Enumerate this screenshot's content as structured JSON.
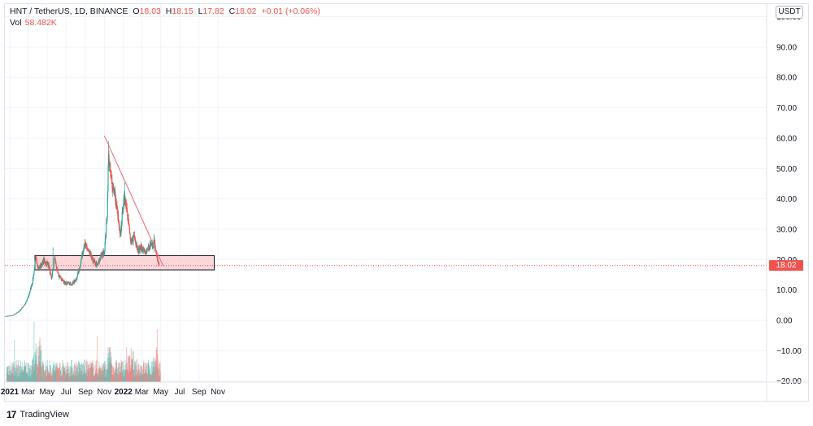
{
  "legend": {
    "symbol": "HNT / TetherUS, 1D, BINANCE",
    "o_label": "O",
    "o_value": "18.03",
    "h_label": "H",
    "h_value": "18.15",
    "l_label": "L",
    "l_value": "17.82",
    "c_label": "C",
    "c_value": "18.02",
    "change": "+0.01 (+0.06%)",
    "vol_label": "Vol",
    "vol_value": "58.482K"
  },
  "currency_badge": "USDT",
  "last_price_tag": "18.02",
  "footer": {
    "logo": "17",
    "brand": "TradingView"
  },
  "colors": {
    "up": "#26a69a",
    "down": "#ef5350",
    "zone_fill": "#f8c9cc",
    "trendline": "#f06272"
  },
  "chart_data": {
    "type": "candlestick",
    "title": "HNT / TetherUS, 1D, BINANCE",
    "y_tick_labels": [
      "100.00",
      "90.00",
      "80.00",
      "70.00",
      "60.00",
      "50.00",
      "40.00",
      "30.00",
      "20.00",
      "10.00",
      "0.00",
      "−10.00",
      "−20.00"
    ],
    "y_ticks": [
      100,
      90,
      80,
      70,
      60,
      50,
      40,
      30,
      20,
      10,
      0,
      -10,
      -20
    ],
    "ylim": [
      -20,
      100
    ],
    "x_tick_labels": [
      "2021",
      "Mar",
      "May",
      "Jul",
      "Sep",
      "Nov",
      "2022",
      "Mar",
      "May",
      "Jul",
      "Sep",
      "Nov"
    ],
    "x_ticks": [
      "2021-01-01",
      "2021-03-01",
      "2021-05-01",
      "2021-07-01",
      "2021-09-01",
      "2021-11-01",
      "2022-01-01",
      "2022-03-01",
      "2022-05-01",
      "2022-07-01",
      "2022-09-01",
      "2022-11-01"
    ],
    "price_path": [
      [
        "2020-12-18",
        1.3
      ],
      [
        "2021-01-10",
        1.6
      ],
      [
        "2021-02-01",
        3.0
      ],
      [
        "2021-02-20",
        5.5
      ],
      [
        "2021-03-01",
        7.5
      ],
      [
        "2021-03-15",
        12.5
      ],
      [
        "2021-03-25",
        20.0
      ],
      [
        "2021-04-05",
        17.0
      ],
      [
        "2021-04-20",
        19.5
      ],
      [
        "2021-05-05",
        18.5
      ],
      [
        "2021-05-15",
        13.5
      ],
      [
        "2021-05-25",
        20.5
      ],
      [
        "2021-06-05",
        15.0
      ],
      [
        "2021-06-25",
        12.5
      ],
      [
        "2021-07-15",
        12.0
      ],
      [
        "2021-08-01",
        13.0
      ],
      [
        "2021-08-15",
        18.0
      ],
      [
        "2021-08-28",
        25.0
      ],
      [
        "2021-09-10",
        23.0
      ],
      [
        "2021-09-25",
        19.5
      ],
      [
        "2021-10-10",
        18.0
      ],
      [
        "2021-10-20",
        21.0
      ],
      [
        "2021-11-01",
        22.5
      ],
      [
        "2021-11-10",
        35.0
      ],
      [
        "2021-11-14",
        54.0
      ],
      [
        "2021-11-22",
        47.0
      ],
      [
        "2021-12-05",
        41.0
      ],
      [
        "2021-12-15",
        34.0
      ],
      [
        "2021-12-22",
        27.0
      ],
      [
        "2021-12-31",
        38.0
      ],
      [
        "2022-01-08",
        40.0
      ],
      [
        "2022-01-15",
        35.0
      ],
      [
        "2022-01-25",
        25.0
      ],
      [
        "2022-02-05",
        28.0
      ],
      [
        "2022-02-18",
        23.0
      ],
      [
        "2022-03-01",
        24.0
      ],
      [
        "2022-03-15",
        22.0
      ],
      [
        "2022-03-28",
        24.5
      ],
      [
        "2022-04-05",
        25.0
      ],
      [
        "2022-04-10",
        26.0
      ],
      [
        "2022-04-18",
        21.0
      ],
      [
        "2022-04-26",
        18.02
      ]
    ],
    "annotations": {
      "support_zone": {
        "type": "rectangle",
        "from": "2021-03-23",
        "to": "2022-10-20",
        "y_low": 16.6,
        "y_high": 21.3
      },
      "trendline": {
        "type": "line",
        "from": [
          "2021-11-01",
          60.8
        ],
        "to": [
          "2022-05-09",
          17.9
        ]
      },
      "last_price_line": 18.02
    },
    "volume_panel": {
      "series": "Vol",
      "last_value": "58.482K"
    }
  }
}
